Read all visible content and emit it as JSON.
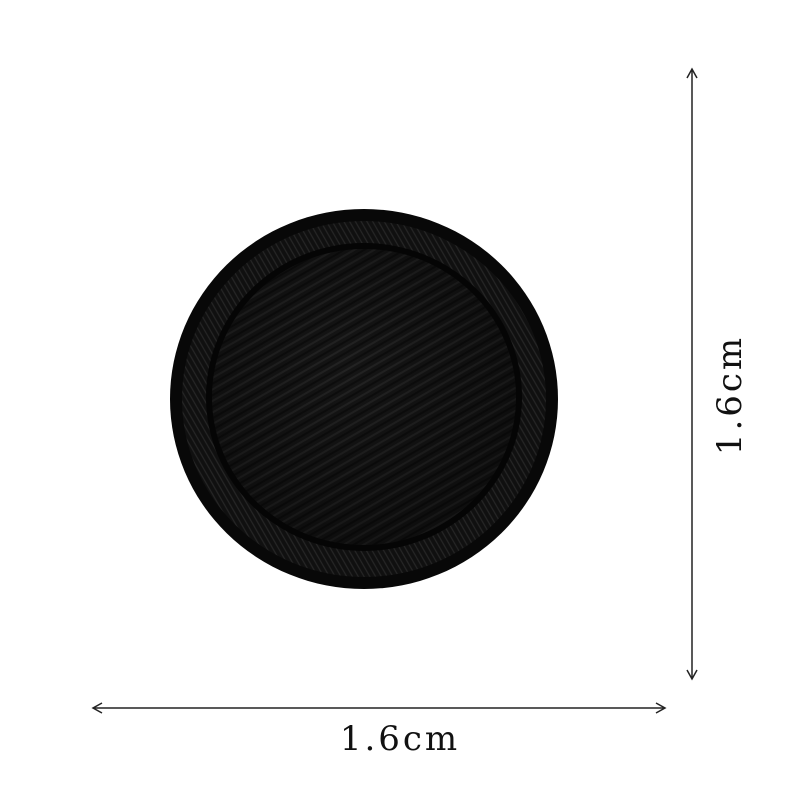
{
  "product": {
    "image_name": "round-embroidered-patch",
    "patch_color": "#141414",
    "rim_color": "#0b0b0b",
    "background_color": "#ffffff"
  },
  "dimensions": {
    "width_label": "1.6cm",
    "height_label": "1.6cm",
    "line_color": "#222222"
  }
}
